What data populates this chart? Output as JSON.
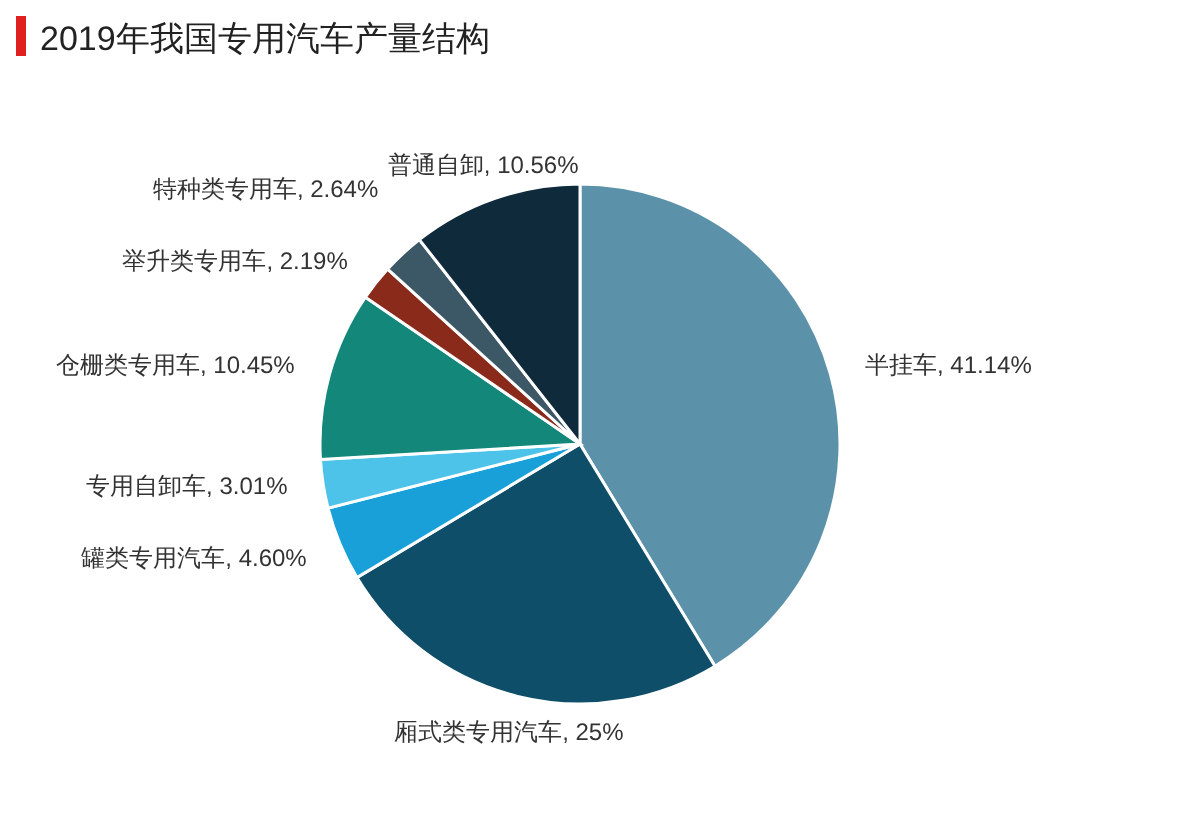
{
  "chart_data": {
    "type": "pie",
    "title": "2019年我国专用汽车产量结构",
    "categories": [
      "半挂车",
      "厢式类专用汽车",
      "罐类专用汽车",
      "专用自卸车",
      "仓栅类专用车",
      "举升类专用车",
      "特种类专用车",
      "普通自卸"
    ],
    "values": [
      41.14,
      25,
      4.6,
      3.01,
      10.45,
      2.19,
      2.64,
      10.56
    ],
    "value_labels": [
      "41.14%",
      "25%",
      "4.60%",
      "3.01%",
      "10.45%",
      "2.19%",
      "2.64%",
      "10.56%"
    ],
    "colors": [
      "#5b92aa",
      "#0e4e68",
      "#1aa0d8",
      "#4ec3ea",
      "#12877a",
      "#8a2a1a",
      "#3c5866",
      "#0f2b3b"
    ],
    "legend": false
  }
}
